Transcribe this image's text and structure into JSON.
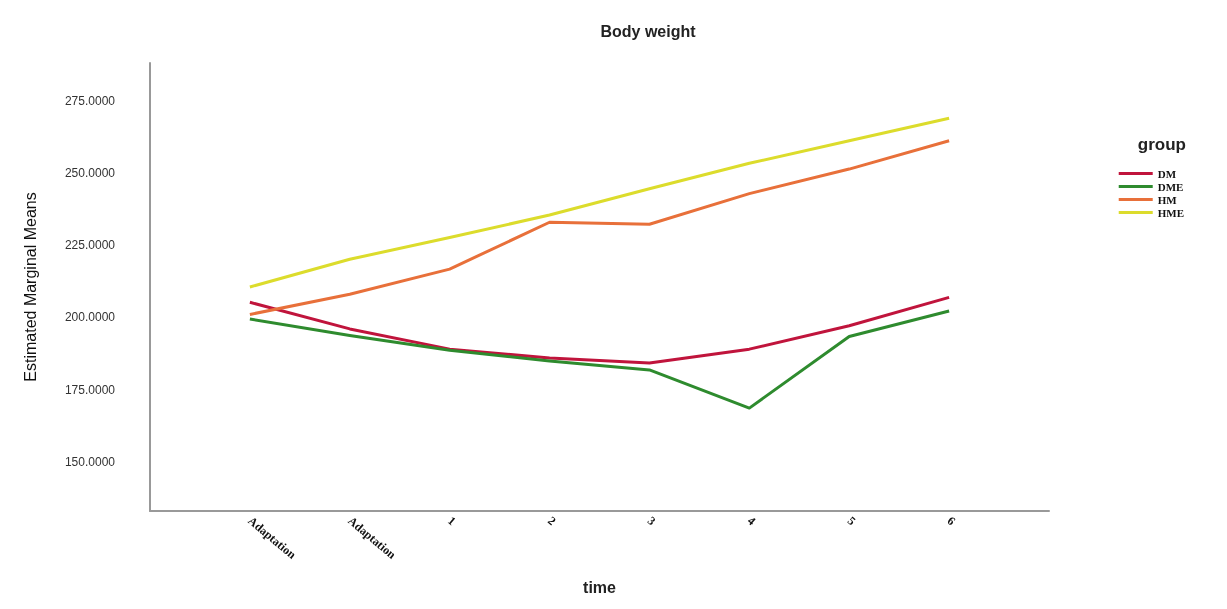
{
  "chart_data": {
    "type": "line",
    "title": "Body weight",
    "xlabel": "time",
    "ylabel": "Estimated Marginal Means",
    "legend_title": "group",
    "legend": "top right",
    "grid": false,
    "categories": [
      "Adaptation",
      "Adaptation",
      "1",
      "2",
      "3",
      "4",
      "5",
      "6"
    ],
    "ylim": [
      133,
      288
    ],
    "yticks": [
      {
        "value": 150,
        "label": "150.0000"
      },
      {
        "value": 175,
        "label": "175.0000"
      },
      {
        "value": 200,
        "label": "200.0000"
      },
      {
        "value": 225,
        "label": "225.0000"
      },
      {
        "value": 250,
        "label": "250.0000"
      },
      {
        "value": 275,
        "label": "275.0000"
      }
    ],
    "series": [
      {
        "name": "DM",
        "color": "#c0143c",
        "values": [
          205.2,
          196,
          189,
          185.9,
          184.2,
          189,
          197.1,
          206.9
        ]
      },
      {
        "name": "DME",
        "color": "#2e8b2e",
        "values": [
          199.4,
          193.7,
          188.6,
          184.9,
          181.8,
          168.6,
          193.4,
          202.2
        ]
      },
      {
        "name": "HM",
        "color": "#e8703a",
        "values": [
          201,
          208,
          216.7,
          232.9,
          232.2,
          242.8,
          251.3,
          261.1
        ]
      },
      {
        "name": "HME",
        "color": "#dcdc2c",
        "values": [
          210.5,
          220.1,
          227.6,
          235.4,
          244.5,
          253.3,
          261.1,
          268.9
        ]
      }
    ]
  }
}
